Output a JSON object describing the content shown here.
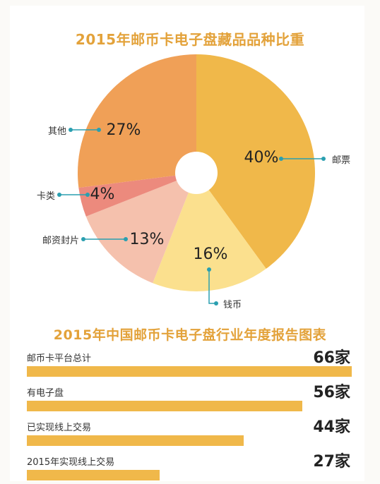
{
  "chart_data": [
    {
      "type": "pie",
      "title": "2015年邮币卡电子盘藏品品种比重",
      "slices": [
        {
          "label": "邮票",
          "value": 40,
          "display": "40%",
          "color": "#f0b84a"
        },
        {
          "label": "钱币",
          "value": 16,
          "display": "16%",
          "color": "#fbe08e"
        },
        {
          "label": "邮资封片",
          "value": 13,
          "display": "13%",
          "color": "#f5c1ad"
        },
        {
          "label": "卡类",
          "value": 4,
          "display": "4%",
          "color": "#ec8a7d"
        },
        {
          "label": "其他",
          "value": 27,
          "display": "27%",
          "color": "#f0a057"
        }
      ],
      "donut_hole": true
    },
    {
      "type": "bar",
      "title": "2015年中国邮币卡电子盘行业年度报告图表",
      "categories": [
        "邮币卡平台总计",
        "有电子盘",
        "已实现线上交易",
        "2015年实现线上交易"
      ],
      "values": [
        66,
        56,
        44,
        27
      ],
      "value_labels": [
        "66家",
        "56家",
        "44家",
        "27家"
      ],
      "bar_color": "#f0b84a",
      "orientation": "horizontal"
    }
  ],
  "colors": {
    "title": "#e3a23a",
    "leader": "#2a9fb0"
  }
}
